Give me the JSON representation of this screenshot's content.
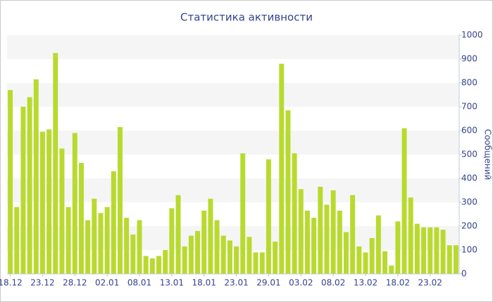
{
  "chart_data": {
    "type": "bar",
    "title": "Статистика активности",
    "y_label": "Сообщений",
    "categories": [
      "18.12",
      null,
      null,
      null,
      null,
      "23.12",
      null,
      null,
      null,
      null,
      "28.12",
      null,
      null,
      null,
      null,
      "02.01",
      null,
      null,
      null,
      null,
      "08.01",
      null,
      null,
      null,
      null,
      "13.01",
      null,
      null,
      null,
      null,
      "18.01",
      null,
      null,
      null,
      null,
      "23.01",
      null,
      null,
      null,
      null,
      "29.01",
      null,
      null,
      null,
      null,
      "03.02",
      null,
      null,
      null,
      null,
      "08.02",
      null,
      null,
      null,
      null,
      "13.02",
      null,
      null,
      null,
      null,
      "18.02",
      null,
      null,
      null,
      null,
      "23.02",
      null,
      null,
      null,
      null
    ],
    "values": [
      770,
      280,
      700,
      740,
      815,
      595,
      605,
      925,
      525,
      280,
      590,
      465,
      225,
      315,
      255,
      280,
      430,
      615,
      235,
      165,
      225,
      75,
      65,
      75,
      100,
      275,
      330,
      115,
      160,
      180,
      265,
      315,
      225,
      160,
      140,
      115,
      505,
      155,
      90,
      90,
      480,
      135,
      880,
      685,
      505,
      355,
      265,
      235,
      365,
      290,
      350,
      265,
      175,
      330,
      115,
      90,
      150,
      245,
      95,
      35,
      220,
      610,
      320,
      210,
      195,
      195,
      195,
      185,
      120,
      120
    ],
    "color": "#b8da2f",
    "ylim": [
      0,
      1000
    ],
    "yticks": [
      0,
      100,
      200,
      300,
      400,
      500,
      600,
      700,
      800,
      900,
      1000
    ],
    "grid": true
  }
}
